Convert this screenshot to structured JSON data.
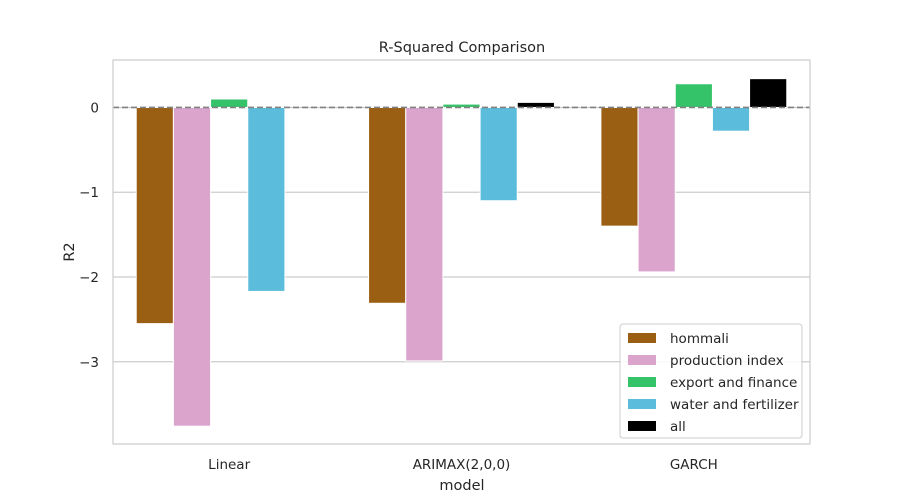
{
  "chart_data": {
    "type": "bar",
    "title": "R-Squared Comparison",
    "xlabel": "model",
    "ylabel": "R2",
    "categories": [
      "Linear",
      "ARIMAX(2,0,0)",
      "GARCH"
    ],
    "series": [
      {
        "name": "hommali",
        "color": "#9A5F13",
        "values": [
          -2.55,
          -2.31,
          -1.4
        ]
      },
      {
        "name": "production index",
        "color": "#DBA4CC",
        "values": [
          -3.76,
          -2.99,
          -1.94
        ]
      },
      {
        "name": "export and finance",
        "color": "#35C36A",
        "values": [
          0.1,
          0.04,
          0.28
        ]
      },
      {
        "name": "water and fertilizer",
        "color": "#5CBCDC",
        "values": [
          -2.17,
          -1.1,
          -0.28
        ]
      },
      {
        "name": "all",
        "color": "#000000",
        "values": [
          null,
          0.06,
          0.34
        ]
      }
    ],
    "ylim": [
      -3.97,
      0.56
    ],
    "yticks": [
      -3,
      -2,
      -1,
      0
    ],
    "yticklabels": [
      "−3",
      "−2",
      "−1",
      "0"
    ],
    "reference_line": {
      "y": 0,
      "style": "dashed",
      "color": "#808080"
    },
    "grid": {
      "y": true,
      "x": false
    },
    "legend": {
      "placement": "bottom-right"
    }
  }
}
